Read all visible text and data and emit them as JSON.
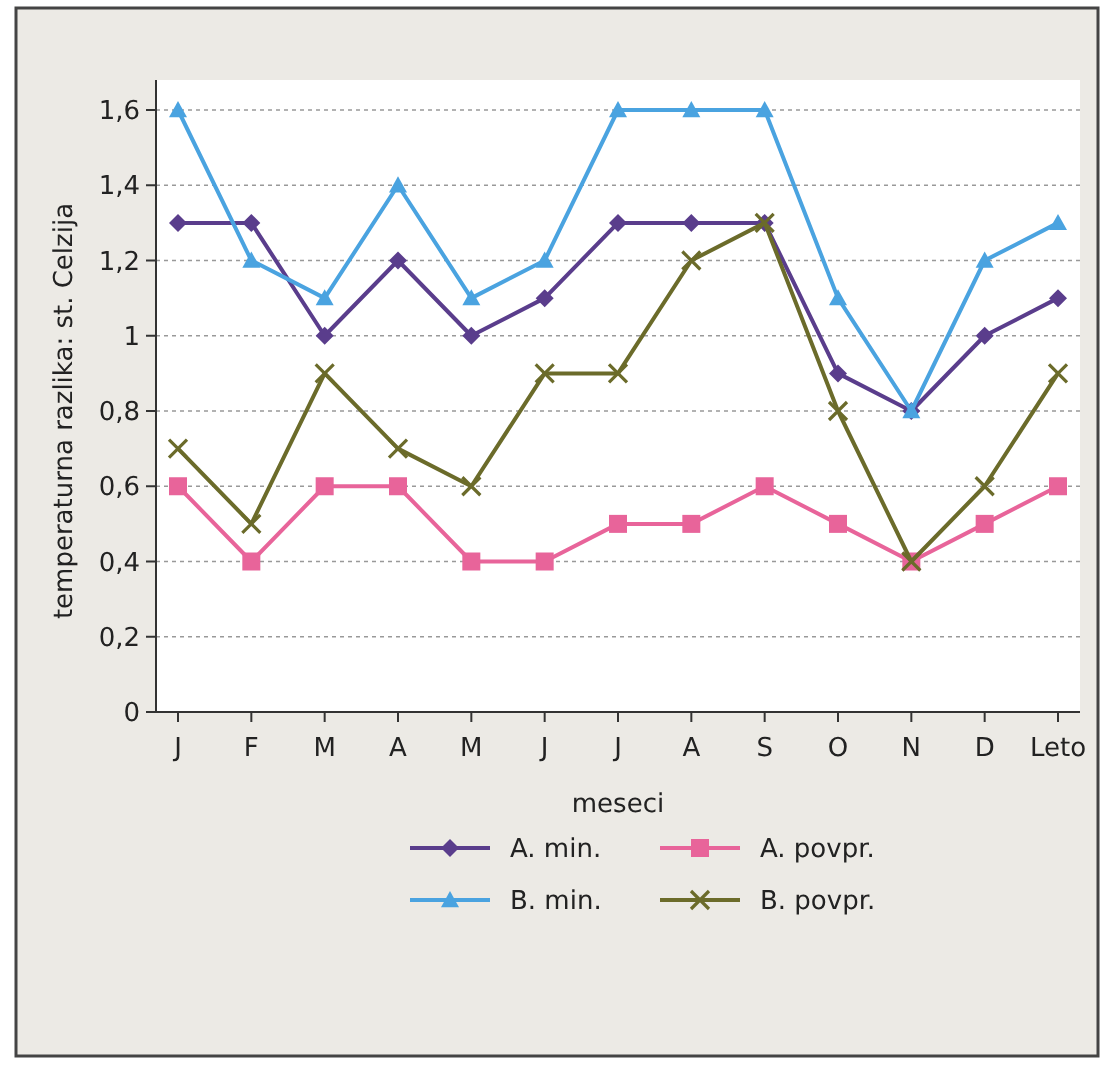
{
  "chart_data": {
    "type": "line",
    "xlabel": "meseci",
    "ylabel": "temperaturna razlika: st. Celzija",
    "categories": [
      "J",
      "F",
      "M",
      "A",
      "M",
      "J",
      "J",
      "A",
      "S",
      "O",
      "N",
      "D",
      "Leto"
    ],
    "ylim": [
      0,
      1.6
    ],
    "yticks": [
      0,
      {
        "value": 0.2,
        "label": "0,2"
      },
      {
        "value": 0.4,
        "label": "0,4"
      },
      {
        "value": 0.6,
        "label": "0,6"
      },
      {
        "value": 0.8,
        "label": "0,8"
      },
      1,
      {
        "value": 1.2,
        "label": "1,2"
      },
      {
        "value": 1.4,
        "label": "1,4"
      },
      {
        "value": 1.6,
        "label": "1,6"
      }
    ],
    "grid": "y",
    "legend": "bottom",
    "series": [
      {
        "name": "A. min.",
        "color": "#5a3d8c",
        "marker": "diamond",
        "values": [
          1.3,
          1.3,
          1.0,
          1.2,
          1.0,
          1.1,
          1.3,
          1.3,
          1.3,
          0.9,
          0.8,
          1.0,
          1.1
        ]
      },
      {
        "name": "A. povpr.",
        "color": "#e8649a",
        "marker": "square",
        "values": [
          0.6,
          0.4,
          0.6,
          0.6,
          0.4,
          0.4,
          0.5,
          0.5,
          0.6,
          0.5,
          0.4,
          0.5,
          0.6
        ]
      },
      {
        "name": "B. min.",
        "color": "#4aa3e0",
        "marker": "triangle",
        "values": [
          1.6,
          1.2,
          1.1,
          1.4,
          1.1,
          1.2,
          1.6,
          1.6,
          1.6,
          1.1,
          0.8,
          1.2,
          1.3
        ]
      },
      {
        "name": "B. povpr.",
        "color": "#6b6b2a",
        "marker": "cross",
        "values": [
          0.7,
          0.5,
          0.9,
          0.7,
          0.6,
          0.9,
          0.9,
          1.2,
          1.3,
          0.8,
          0.4,
          0.6,
          0.9
        ]
      }
    ]
  }
}
